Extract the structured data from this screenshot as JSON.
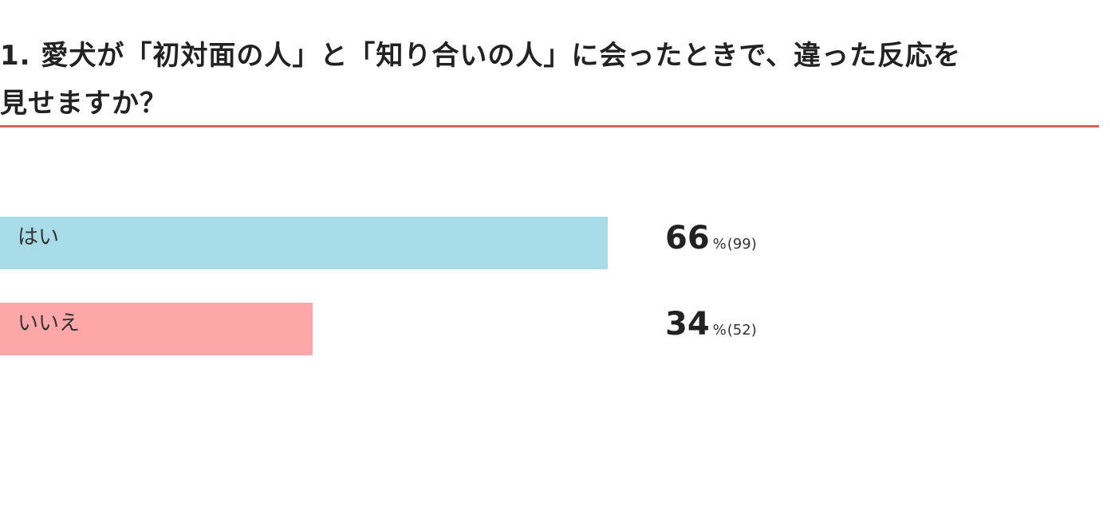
{
  "question": {
    "line1": "1. 愛犬が「初対面の人」と「知り合いの人」に会ったときで、違った反応を",
    "line2": "見せますか？"
  },
  "colors": {
    "divider": "#ef5a5a",
    "yes": "#a8dbe8",
    "no": "#fda7a8"
  },
  "chart_data": {
    "type": "bar",
    "orientation": "horizontal",
    "categories": [
      "はい",
      "いいえ"
    ],
    "values": [
      66,
      34
    ],
    "counts": [
      99,
      52
    ],
    "value_labels": [
      "66",
      "34"
    ],
    "count_labels": [
      "(99)",
      "(52)"
    ],
    "unit": "%",
    "xlim": [
      0,
      100
    ],
    "grid": false,
    "legend": "none"
  }
}
